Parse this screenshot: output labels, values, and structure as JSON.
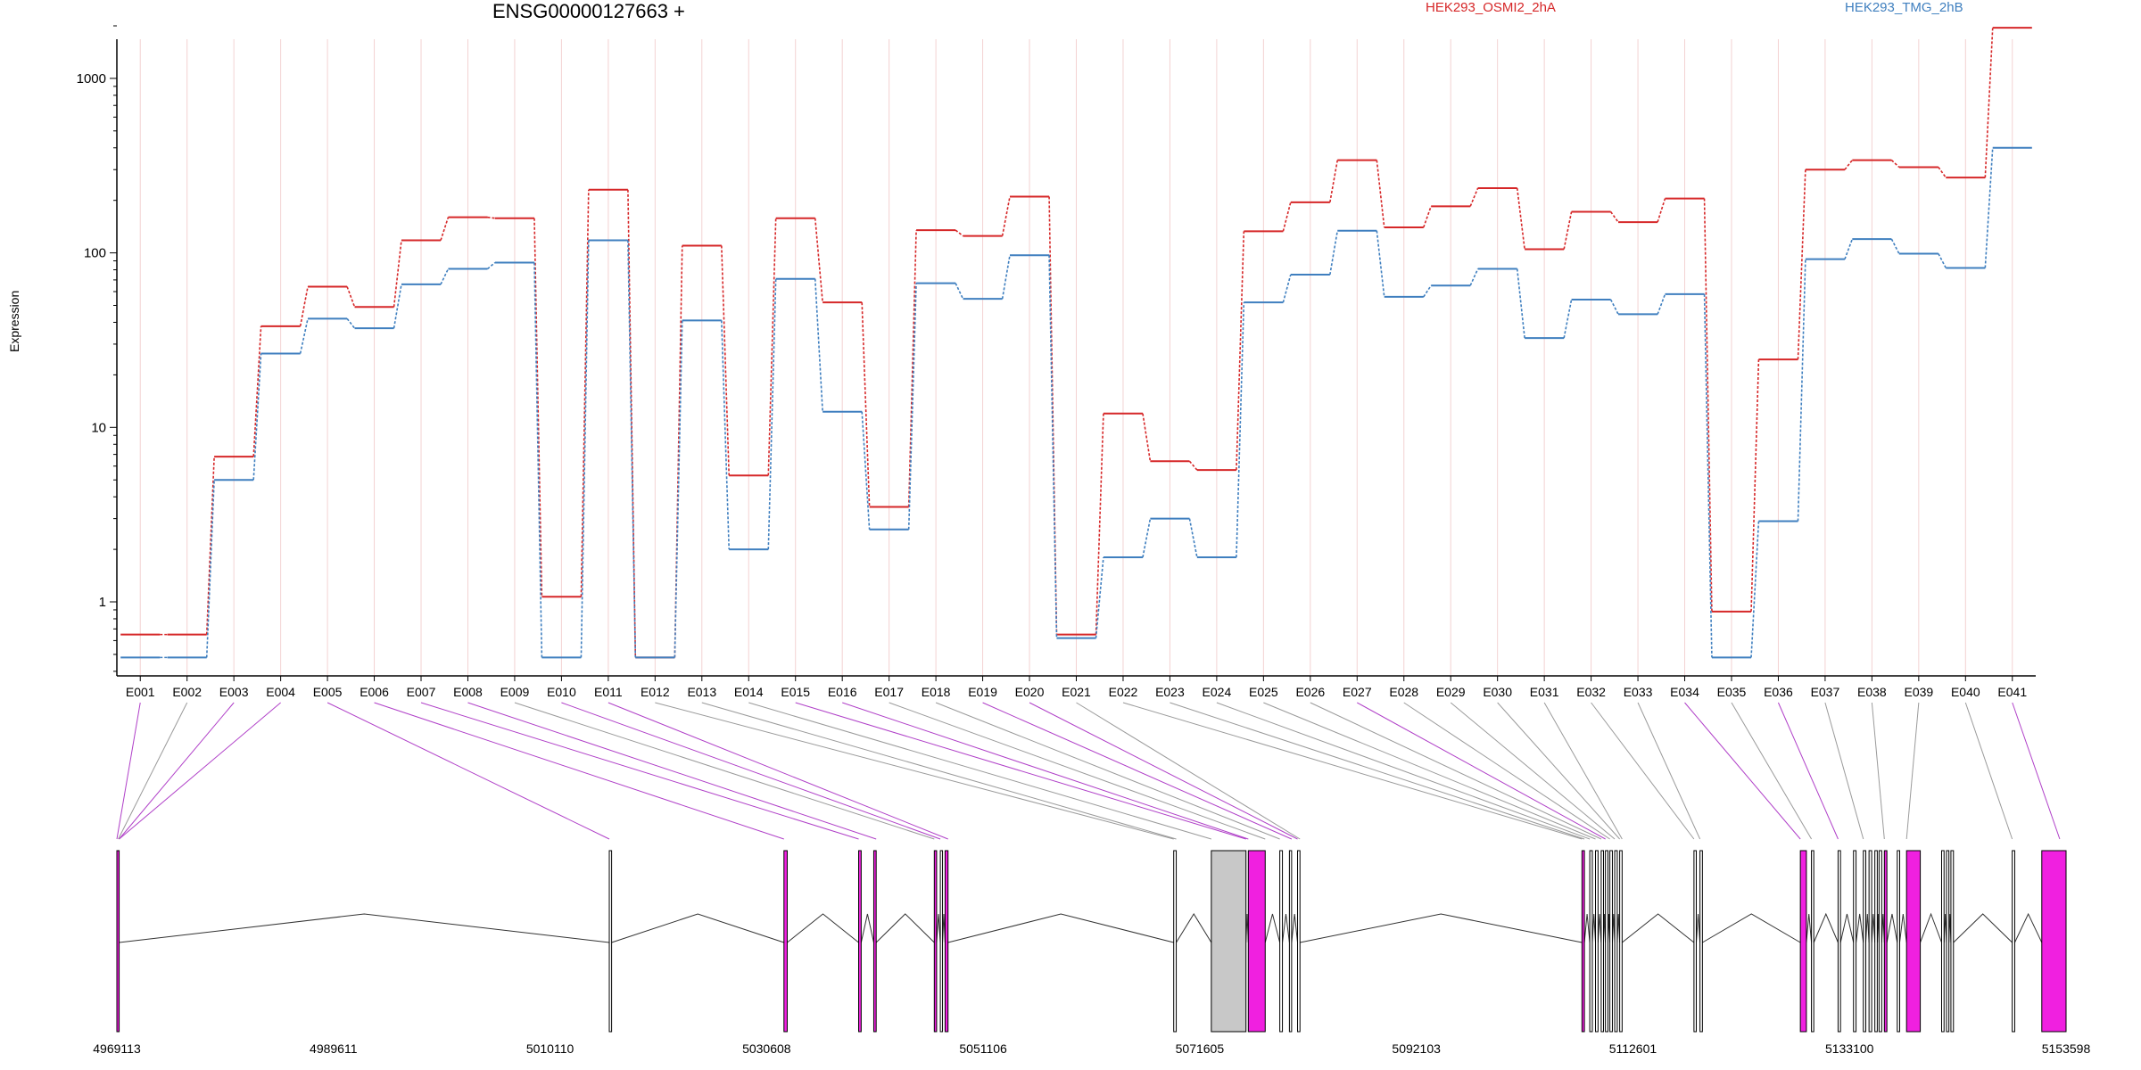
{
  "chart_data": {
    "type": "line",
    "title": "ENSG00000127663 +",
    "ylabel": "Expression",
    "xlabel": "",
    "yscale": "log",
    "ylim": [
      0.4,
      2500
    ],
    "yticks": [
      1,
      10,
      100,
      1000
    ],
    "ytick_labels": [
      "1",
      "10",
      "100",
      "1000"
    ],
    "grid": "vertical",
    "legend_placement": "top-right",
    "categories": [
      "E001",
      "E002",
      "E003",
      "E004",
      "E005",
      "E006",
      "E007",
      "E008",
      "E009",
      "E010",
      "E011",
      "E012",
      "E013",
      "E014",
      "E015",
      "E016",
      "E017",
      "E018",
      "E019",
      "E020",
      "E021",
      "E022",
      "E023",
      "E024",
      "E025",
      "E026",
      "E027",
      "E028",
      "E029",
      "E030",
      "E031",
      "E032",
      "E033",
      "E034",
      "E035",
      "E036",
      "E037",
      "E038",
      "E039",
      "E040",
      "E041"
    ],
    "series": [
      {
        "name": "HEK293_OSMI2_2hA",
        "color": "#d62728",
        "values": [
          0.65,
          0.65,
          6.8,
          38,
          64,
          49,
          118,
          160,
          158,
          1.07,
          230,
          0.48,
          110,
          5.3,
          158,
          52,
          3.5,
          135,
          125,
          210,
          0.65,
          12,
          6.4,
          5.7,
          133,
          195,
          340,
          140,
          185,
          235,
          105,
          172,
          150,
          205,
          0.88,
          24.5,
          300,
          340,
          310,
          270,
          1950
        ]
      },
      {
        "name": "HEK293_TMG_2hB",
        "color": "#3f7fbf",
        "values": [
          0.48,
          0.48,
          5.0,
          26.5,
          42,
          37,
          66,
          81,
          88,
          0.48,
          118,
          0.48,
          41,
          2.0,
          71,
          12.3,
          2.6,
          67,
          54.5,
          97,
          0.62,
          1.8,
          3.0,
          1.8,
          52,
          75,
          134,
          56,
          65,
          81,
          32.5,
          54,
          44.5,
          58,
          0.48,
          2.9,
          92,
          120,
          99,
          82,
          400
        ]
      }
    ],
    "gene_model": {
      "genomic_start": 4969113,
      "genomic_end": 5153598,
      "tick_labels": [
        "4969113",
        "4989611",
        "5010110",
        "5030608",
        "5051106",
        "5071605",
        "5092103",
        "5112601",
        "5133100",
        "5153598"
      ],
      "feature_colors": {
        "exon": "#ffffff",
        "highlighted_exon": "#f020e0",
        "gray_exon": "#c8c8c8"
      }
    }
  }
}
